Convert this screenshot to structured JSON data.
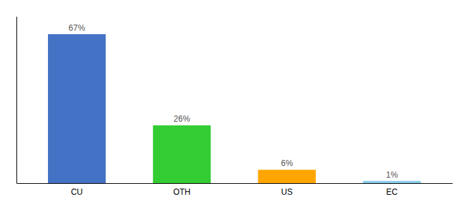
{
  "chart_data": {
    "type": "bar",
    "categories": [
      "CU",
      "OTH",
      "US",
      "EC"
    ],
    "values": [
      67,
      26,
      6,
      1
    ],
    "value_labels": [
      "67%",
      "26%",
      "6%",
      "1%"
    ],
    "data_labels": true,
    "colors": [
      "#4472C4",
      "#33CC33",
      "#FFA500",
      "#87CEEB"
    ],
    "ylim": [
      0,
      75
    ],
    "tick_labels": "x"
  }
}
